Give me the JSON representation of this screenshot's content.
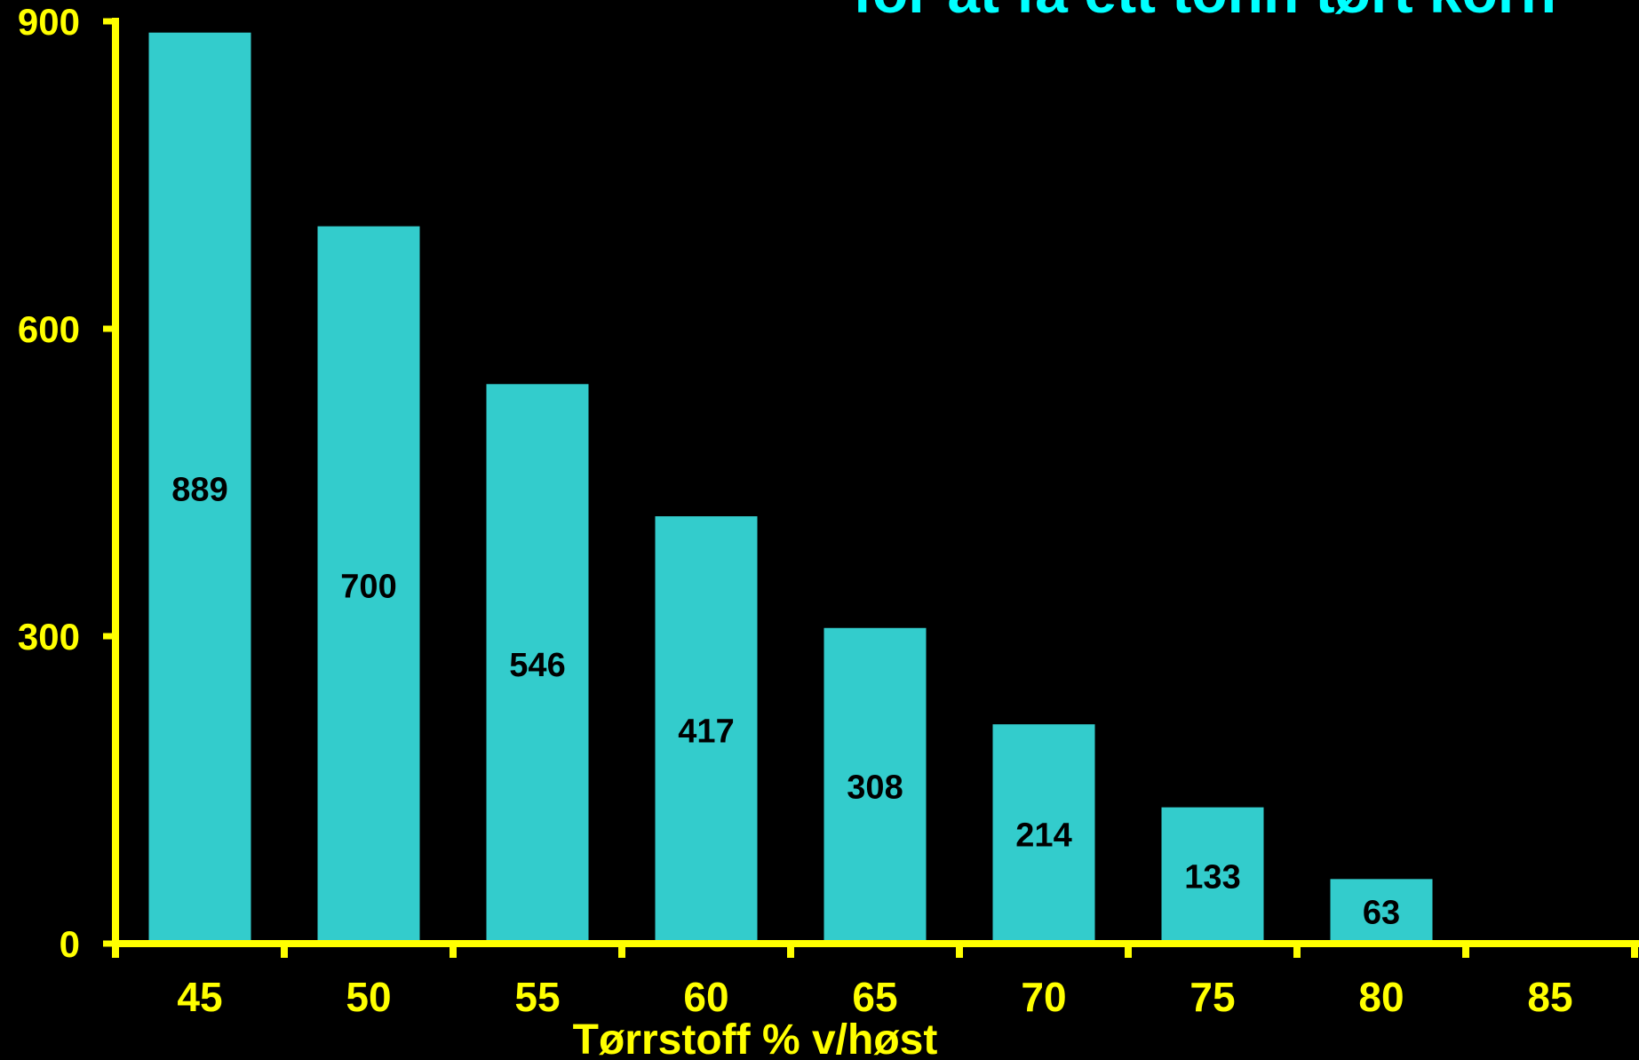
{
  "chart_data": {
    "type": "bar",
    "title": "for at få ett tonn tørt korn",
    "xlabel": "Tørrstoff % v/høst",
    "ylabel": "",
    "categories": [
      "45",
      "50",
      "55",
      "60",
      "65",
      "70",
      "75",
      "80",
      "85"
    ],
    "series": [
      {
        "values": [
          889,
          700,
          546,
          417,
          308,
          214,
          133,
          63,
          null
        ]
      }
    ],
    "data_labels": [
      "889",
      "700",
      "546",
      "417",
      "308",
      "214",
      "133",
      "63",
      ""
    ],
    "ylim": [
      0,
      900
    ],
    "yticks": [
      "0",
      "300",
      "600",
      "900"
    ],
    "grid": false,
    "legend": "none",
    "colors": {
      "background": "#000000",
      "bar": "#33CCCC",
      "axis": "#FFFF00",
      "tick_text": "#FFFF00",
      "title": "#00FFFF",
      "bar_label": "#000000"
    }
  }
}
